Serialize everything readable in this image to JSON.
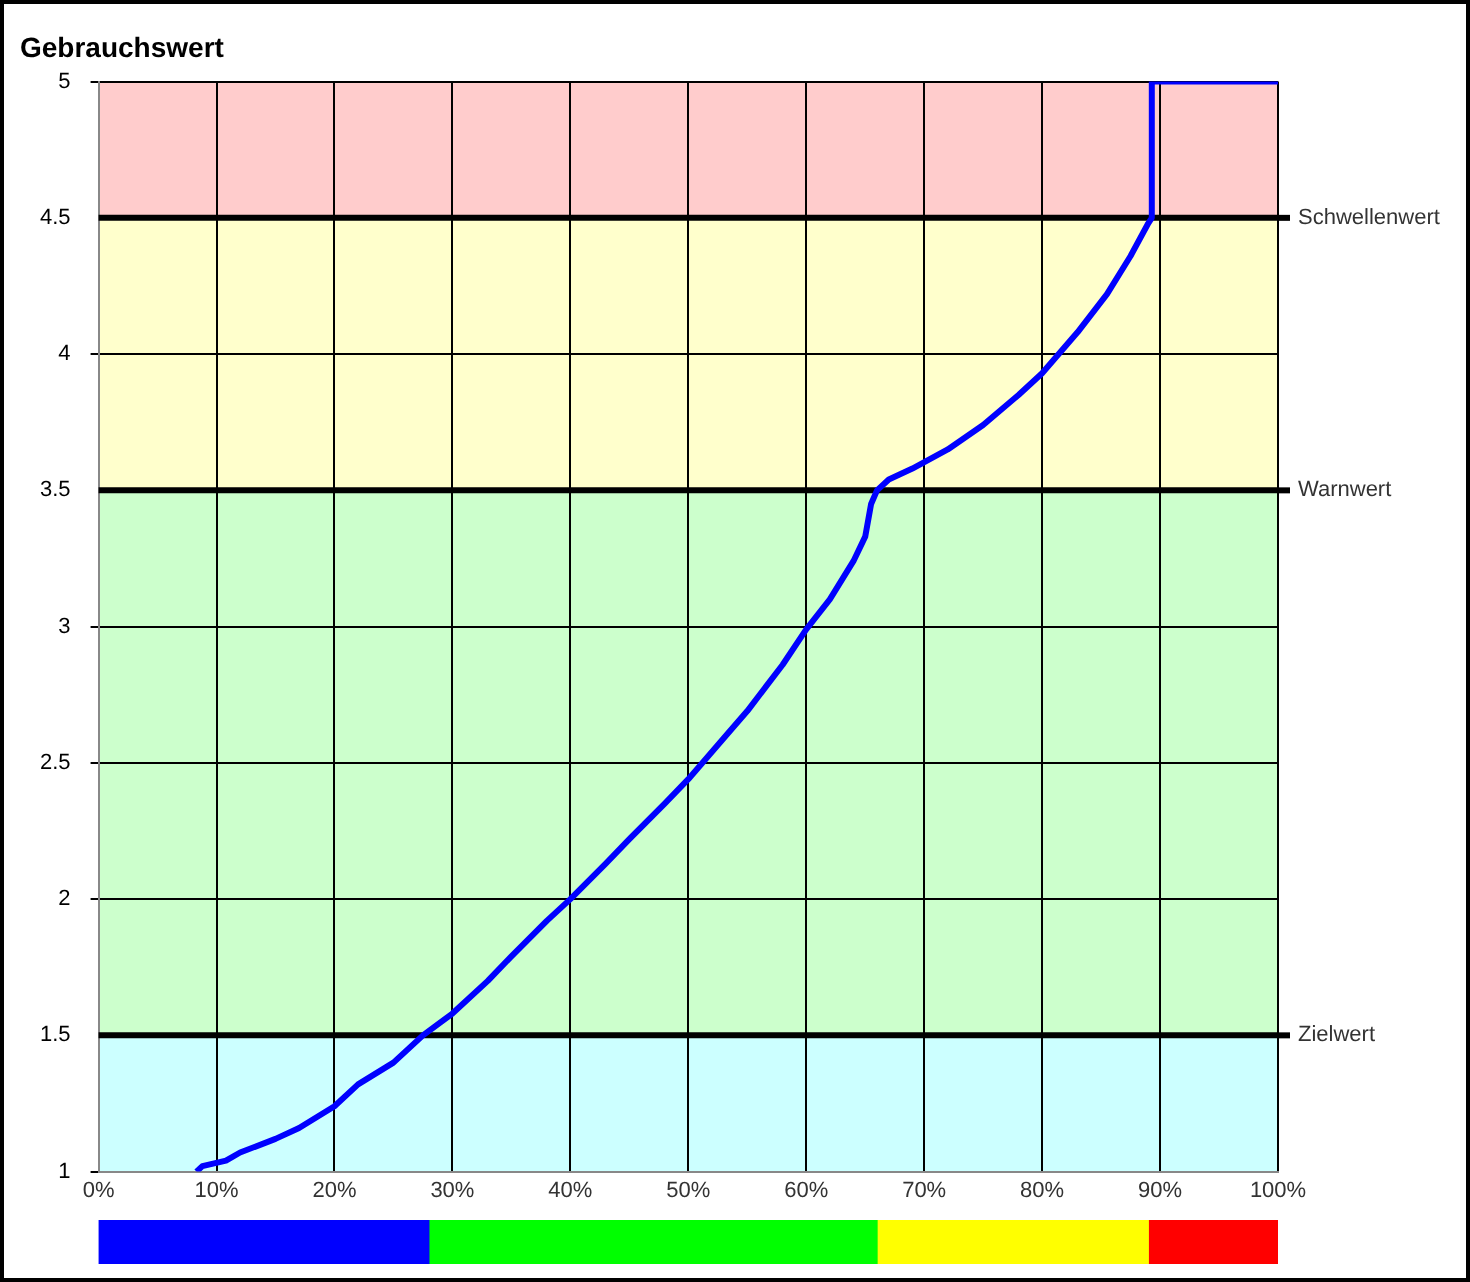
{
  "chart_data": [
    {
      "type": "line",
      "title": "Gebrauchswert",
      "x": [
        8.3,
        8.8,
        10.8,
        12,
        15,
        17,
        20,
        22,
        25,
        27.5,
        30,
        33,
        35,
        38,
        40,
        43,
        45,
        48,
        50,
        53,
        55,
        58,
        60,
        62,
        64,
        65,
        65.5,
        66,
        67,
        69,
        72,
        75,
        78,
        80,
        83,
        85.5,
        87.5,
        89,
        89.3,
        89.3,
        100
      ],
      "series": [
        {
          "color": "#0000ff",
          "values": [
            1.0,
            1.02,
            1.04,
            1.07,
            1.12,
            1.16,
            1.24,
            1.32,
            1.4,
            1.5,
            1.58,
            1.7,
            1.79,
            1.92,
            2.0,
            2.13,
            2.22,
            2.35,
            2.44,
            2.59,
            2.69,
            2.86,
            2.99,
            3.1,
            3.24,
            3.33,
            3.45,
            3.5,
            3.54,
            3.58,
            3.65,
            3.74,
            3.85,
            3.93,
            4.08,
            4.22,
            4.36,
            4.48,
            4.5,
            5,
            5
          ]
        }
      ],
      "xlim": [
        0,
        100
      ],
      "xticks": [
        {
          "value": 0,
          "label": "0%"
        },
        {
          "value": 10,
          "label": "10%"
        },
        {
          "value": 20,
          "label": "20%"
        },
        {
          "value": 30,
          "label": "30%"
        },
        {
          "value": 40,
          "label": "40%"
        },
        {
          "value": 50,
          "label": "50%"
        },
        {
          "value": 60,
          "label": "60%"
        },
        {
          "value": 70,
          "label": "70%"
        },
        {
          "value": 80,
          "label": "80%"
        },
        {
          "value": 90,
          "label": "90%"
        },
        {
          "value": 100,
          "label": "100%"
        }
      ],
      "ylim": [
        1,
        5
      ],
      "yticks": [
        1,
        1.5,
        2,
        2.5,
        3,
        3.5,
        4,
        4.5,
        5
      ],
      "grid": true,
      "legend": false,
      "marker": "none",
      "line_style": "solid",
      "bands": [
        {
          "axis": "y",
          "from": 1,
          "to": 1.5,
          "color": "#ccffff"
        },
        {
          "axis": "y",
          "from": 1.5,
          "to": 3.5,
          "color": "#ccffcc"
        },
        {
          "axis": "y",
          "from": 3.5,
          "to": 4.5,
          "color": "#ffffcc"
        },
        {
          "axis": "y",
          "from": 4.5,
          "to": 5,
          "color": "#ffcccc"
        }
      ],
      "ref_lines": [
        {
          "axis": "y",
          "value": 1.5,
          "label": "Zielwert",
          "color": "#000000"
        },
        {
          "axis": "y",
          "value": 3.5,
          "label": "Warnwert",
          "color": "#000000"
        },
        {
          "axis": "y",
          "value": 4.5,
          "label": "Schwellenwert",
          "color": "#000000"
        }
      ]
    },
    {
      "type": "bar",
      "orientation": "horizontal",
      "stacked": true,
      "categories": [
        null
      ],
      "series": [
        {
          "color": "#0000ff",
          "values": [
            28
          ]
        },
        {
          "color": "#00ff00",
          "values": [
            38
          ]
        },
        {
          "color": "#ffff00",
          "values": [
            23
          ]
        },
        {
          "color": "#ff0000",
          "values": [
            11
          ]
        }
      ],
      "xlim": [
        0,
        100
      ],
      "tick_labels": false,
      "legend": false,
      "grid": false
    }
  ]
}
